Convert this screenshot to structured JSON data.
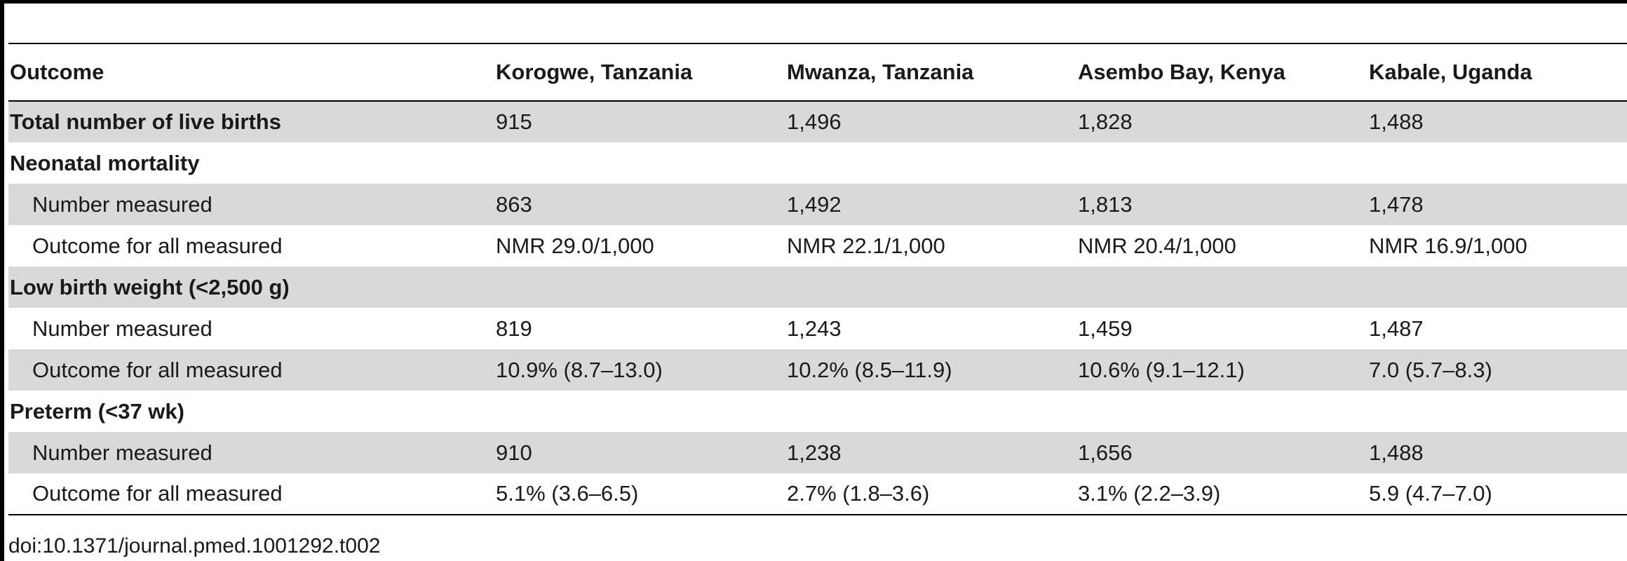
{
  "table": {
    "headers": [
      "Outcome",
      "Korogwe, Tanzania",
      "Mwanza, Tanzania",
      "Asembo Bay, Kenya",
      "Kabale, Uganda"
    ],
    "rows": [
      {
        "label": "Total number of live births",
        "values": [
          "915",
          "1,496",
          "1,828",
          "1,488"
        ]
      },
      {
        "label": "Neonatal mortality",
        "values": [
          "",
          "",
          "",
          ""
        ]
      },
      {
        "label": "Number measured",
        "values": [
          "863",
          "1,492",
          "1,813",
          "1,478"
        ]
      },
      {
        "label": "Outcome for all measured",
        "values": [
          "NMR 29.0/1,000",
          "NMR 22.1/1,000",
          "NMR 20.4/1,000",
          "NMR 16.9/1,000"
        ]
      },
      {
        "label": "Low birth weight (<2,500 g)",
        "values": [
          "",
          "",
          "",
          ""
        ]
      },
      {
        "label": "Number measured",
        "values": [
          "819",
          "1,243",
          "1,459",
          "1,487"
        ]
      },
      {
        "label": "Outcome for all measured",
        "values": [
          "10.9% (8.7–13.0)",
          "10.2% (8.5–11.9)",
          "10.6% (9.1–12.1)",
          "7.0 (5.7–8.3)"
        ]
      },
      {
        "label": "Preterm (<37 wk)",
        "values": [
          "",
          "",
          "",
          ""
        ]
      },
      {
        "label": "Number measured",
        "values": [
          "910",
          "1,238",
          "1,656",
          "1,488"
        ]
      },
      {
        "label": "Outcome for all measured",
        "values": [
          "5.1% (3.6–6.5)",
          "2.7% (1.8–3.6)",
          "3.1% (2.2–3.9)",
          "5.9 (4.7–7.0)"
        ]
      }
    ]
  },
  "footer": {
    "doi": "doi:10.1371/journal.pmed.1001292.t002"
  }
}
